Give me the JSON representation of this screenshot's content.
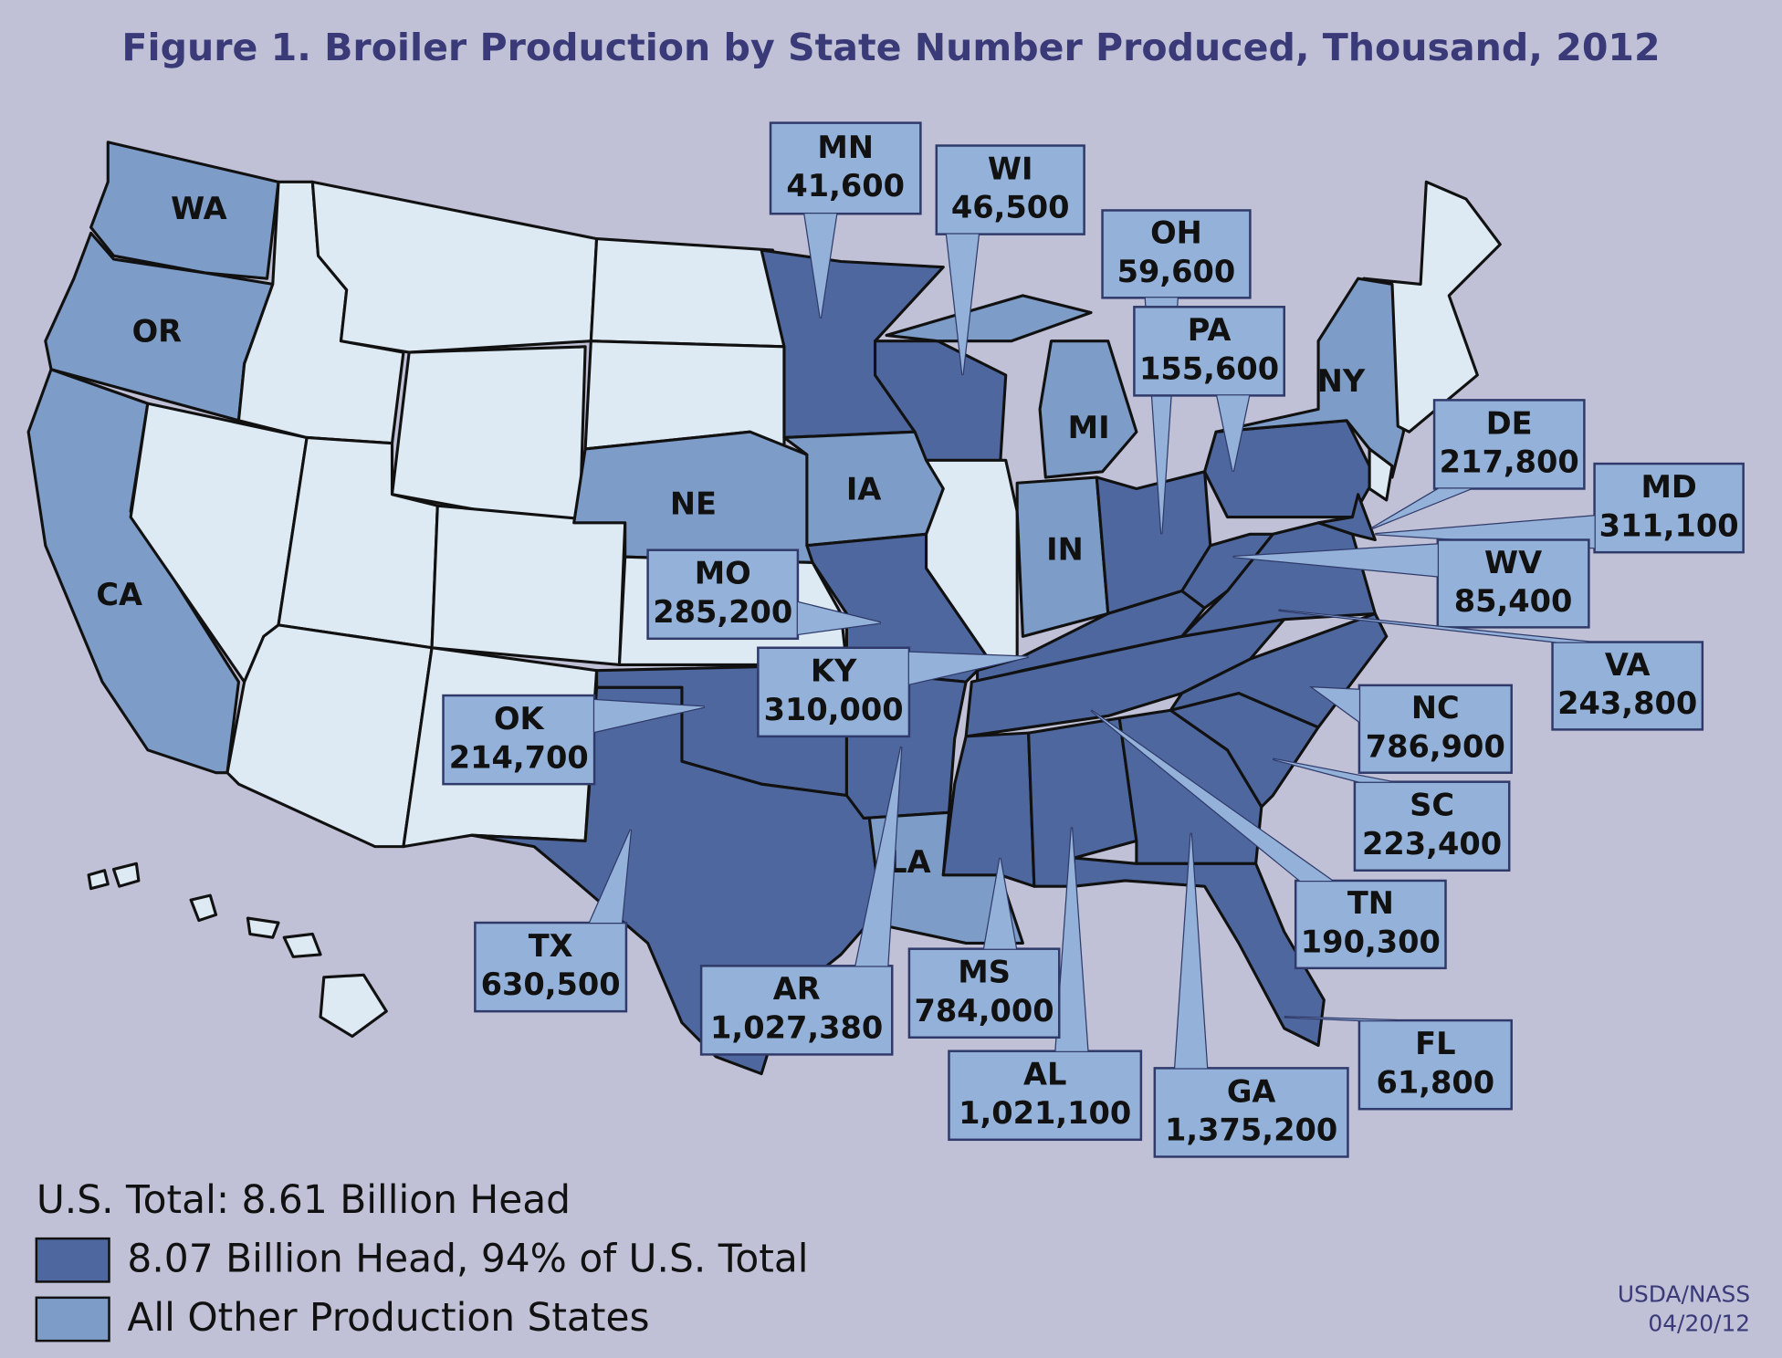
{
  "title": "Figure 1. Broiler Production by State Number Produced, Thousand, 2012",
  "callouts": [
    {
      "abbr": "MN",
      "value": "41,600"
    },
    {
      "abbr": "WI",
      "value": "46,500"
    },
    {
      "abbr": "OH",
      "value": "59,600"
    },
    {
      "abbr": "PA",
      "value": "155,600"
    },
    {
      "abbr": "DE",
      "value": "217,800"
    },
    {
      "abbr": "MD",
      "value": "311,100"
    },
    {
      "abbr": "WV",
      "value": "85,400"
    },
    {
      "abbr": "VA",
      "value": "243,800"
    },
    {
      "abbr": "NC",
      "value": "786,900"
    },
    {
      "abbr": "SC",
      "value": "223,400"
    },
    {
      "abbr": "TN",
      "value": "190,300"
    },
    {
      "abbr": "FL",
      "value": "61,800"
    },
    {
      "abbr": "GA",
      "value": "1,375,200"
    },
    {
      "abbr": "AL",
      "value": "1,021,100"
    },
    {
      "abbr": "MS",
      "value": "784,000"
    },
    {
      "abbr": "AR",
      "value": "1,027,380"
    },
    {
      "abbr": "TX",
      "value": "630,500"
    },
    {
      "abbr": "KY",
      "value": "310,000"
    },
    {
      "abbr": "OK",
      "value": "214,700"
    },
    {
      "abbr": "MO",
      "value": "285,200"
    }
  ],
  "map_labels": [
    "WA",
    "OR",
    "CA",
    "NE",
    "IA",
    "MI",
    "IN",
    "NY",
    "LA"
  ],
  "legend": {
    "total": "U.S. Total: 8.61 Billion Head",
    "items": [
      "8.07 Billion Head, 94% of U.S. Total",
      "All Other Production States"
    ]
  },
  "source": [
    "USDA/NASS",
    "04/20/12"
  ]
}
